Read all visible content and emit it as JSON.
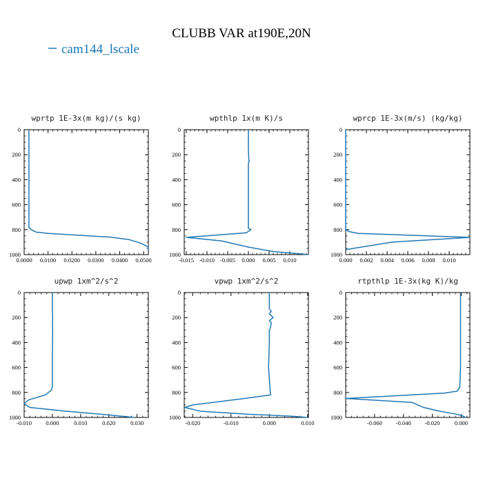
{
  "figure": {
    "title": "CLUBB VAR at190E,20N",
    "legend": [
      {
        "label": "cam144_lscale",
        "color": "#1f77b4"
      }
    ]
  },
  "chart_data": [
    {
      "type": "line",
      "title": "wprtp  1E-3x(m kg)/(s kg)",
      "xlim": [
        0.0,
        0.0052
      ],
      "ylim": [
        1000,
        0
      ],
      "xticks": [
        0.0,
        0.01,
        0.02,
        0.03,
        0.04,
        0.05
      ],
      "xticklabels": [
        "0.0000",
        "0.0100",
        "0.0200",
        "0.0300",
        "0.0400",
        "0.0500"
      ],
      "xtick_scale": 0.1,
      "yticks": [
        0,
        200,
        400,
        600,
        800,
        1000
      ],
      "series": [
        {
          "color": "#1f77b4",
          "x": [
            0.0002,
            0.0002,
            0.0002,
            0.0002,
            0.0002,
            0.0003,
            0.0005,
            0.001,
            0.0036,
            0.0044,
            0.0049,
            0.0052,
            0.0052
          ],
          "y": [
            0,
            200,
            400,
            600,
            780,
            800,
            820,
            830,
            860,
            880,
            910,
            940,
            960
          ]
        }
      ]
    },
    {
      "type": "line",
      "title": "wpthlp  1x(m K)/s",
      "xlim": [
        -0.0155,
        0.0145
      ],
      "ylim": [
        1000,
        0
      ],
      "xticks": [
        -0.015,
        -0.01,
        -0.005,
        0.0,
        0.005,
        0.01
      ],
      "xticklabels": [
        "-0.015",
        "-0.010",
        "-0.005",
        "0.000",
        "0.005",
        "0.010"
      ],
      "xtick_scale": 1,
      "yticks": [
        0,
        200,
        400,
        600,
        800,
        1000
      ],
      "series": [
        {
          "color": "#1f77b4",
          "x": [
            0.0,
            0.0,
            0.0001,
            0.0002,
            0.0,
            0.0,
            0.0,
            0.0,
            0.0006,
            -0.0005,
            -0.015,
            -0.0065,
            0.0,
            0.006,
            0.0145
          ],
          "y": [
            0,
            150,
            240,
            250,
            270,
            400,
            600,
            790,
            800,
            825,
            862,
            890,
            940,
            975,
            1000
          ]
        }
      ]
    },
    {
      "type": "line",
      "title": "wprcp  1E-3x(m/s) (kg/kg)",
      "xlim": [
        0.0,
        0.012
      ],
      "ylim": [
        1000,
        0
      ],
      "xticks": [
        0.0,
        0.002,
        0.004,
        0.006,
        0.008,
        0.01
      ],
      "xticklabels": [
        "0.000",
        "0.002",
        "0.004",
        "0.006",
        "0.008",
        "0.010"
      ],
      "xtick_scale": 1,
      "yticks": [
        0,
        200,
        400,
        600,
        800,
        1000
      ],
      "series": [
        {
          "color": "#1f77b4",
          "x": [
            0.0,
            0.0,
            0.0,
            0.0,
            0.0003,
            0.0012,
            0.012,
            0.0045,
            0.0015,
            0.0
          ],
          "y": [
            0,
            200,
            600,
            800,
            815,
            830,
            862,
            900,
            940,
            960
          ]
        }
      ]
    },
    {
      "type": "line",
      "title": "upwp  1xm^2/s^2",
      "xlim": [
        -0.01,
        0.034
      ],
      "ylim": [
        1000,
        0
      ],
      "xticks": [
        -0.01,
        0.0,
        0.01,
        0.02,
        0.03
      ],
      "xticklabels": [
        "-0.010",
        "0.000",
        "0.010",
        "0.020",
        "0.030"
      ],
      "xtick_scale": 1,
      "yticks": [
        0,
        200,
        400,
        600,
        800,
        1000
      ],
      "series": [
        {
          "color": "#1f77b4",
          "x": [
            0.0,
            0.0,
            0.0001,
            0.0,
            0.0001,
            0.0,
            0.0,
            -0.0003,
            -0.0025,
            -0.0085,
            -0.01,
            -0.008,
            0.005,
            0.02,
            0.029
          ],
          "y": [
            0,
            150,
            200,
            250,
            300,
            500,
            750,
            780,
            820,
            860,
            890,
            920,
            950,
            980,
            1000
          ]
        }
      ]
    },
    {
      "type": "line",
      "title": "vpwp  1xm^2/s^2",
      "xlim": [
        -0.0222,
        0.0102
      ],
      "ylim": [
        1000,
        0
      ],
      "xticks": [
        -0.02,
        -0.01,
        0.0,
        0.01
      ],
      "xticklabels": [
        "-0.020",
        "-0.010",
        "0.000",
        "0.010"
      ],
      "xtick_scale": 1,
      "yticks": [
        0,
        200,
        400,
        600,
        800,
        1000
      ],
      "series": [
        {
          "color": "#1f77b4",
          "x": [
            0.0,
            0.0,
            0.0005,
            0.0,
            0.001,
            0.0,
            0.0005,
            0.0003,
            0.0,
            0.0,
            -0.0002,
            0.0003,
            -0.007,
            -0.02,
            -0.022,
            -0.018,
            -0.005,
            0.006,
            0.01
          ],
          "y": [
            0,
            130,
            150,
            170,
            200,
            225,
            240,
            280,
            300,
            400,
            600,
            820,
            850,
            900,
            920,
            950,
            975,
            990,
            1000
          ]
        }
      ]
    },
    {
      "type": "line",
      "title": "rtpthlp  1E-3x(kg K)/kg",
      "xlim": [
        -0.08,
        0.006
      ],
      "ylim": [
        1000,
        0
      ],
      "xticks": [
        -0.06,
        -0.04,
        -0.02,
        0.0
      ],
      "xticklabels": [
        "-0.060",
        "-0.040",
        "-0.020",
        "0.000"
      ],
      "xtick_scale": 1,
      "yticks": [
        0,
        200,
        400,
        600,
        800,
        1000
      ],
      "series": [
        {
          "color": "#1f77b4",
          "x": [
            -0.0005,
            -0.0005,
            -0.0005,
            -0.001,
            -0.003,
            -0.012,
            -0.08,
            -0.034,
            -0.03,
            -0.026,
            -0.015,
            -0.005,
            0.0005,
            0.003
          ],
          "y": [
            0,
            200,
            600,
            760,
            790,
            805,
            848,
            880,
            900,
            920,
            950,
            970,
            985,
            1000
          ]
        }
      ]
    }
  ]
}
